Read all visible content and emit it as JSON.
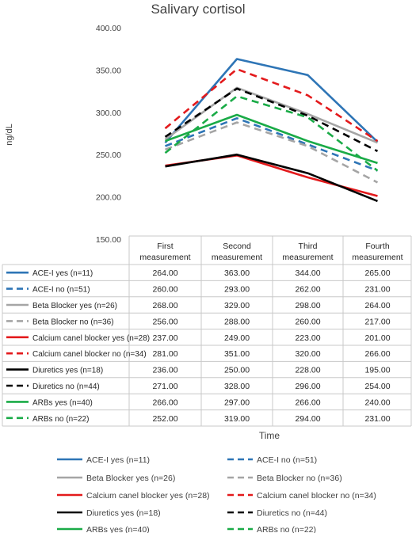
{
  "chart_data": {
    "type": "line",
    "title": "Salivary cortisol",
    "xlabel": "Time",
    "ylabel": "ng/dL",
    "ylim": [
      150,
      400
    ],
    "yticks": [
      "400.00",
      "350.00",
      "300.00",
      "250.00",
      "200.00",
      "150.00"
    ],
    "grid": false,
    "legend_position": "bottom",
    "categories": [
      [
        "First",
        "measurement"
      ],
      [
        "Second",
        "measurement"
      ],
      [
        "Third",
        "measurement"
      ],
      [
        "Fourth",
        "measurement"
      ]
    ],
    "series": [
      {
        "name": "ACE-I yes (n=11)",
        "color": "#2e75b6",
        "dashed": false,
        "values": [
          264.0,
          363.0,
          344.0,
          265.0
        ],
        "labels": [
          "264.00",
          "363.00",
          "344.00",
          "265.00"
        ]
      },
      {
        "name": "ACE-I no (n=51)",
        "color": "#2e75b6",
        "dashed": true,
        "values": [
          260.0,
          293.0,
          262.0,
          231.0
        ],
        "labels": [
          "260.00",
          "293.00",
          "262.00",
          "231.00"
        ]
      },
      {
        "name": "Beta Blocker yes (n=26)",
        "color": "#a5a5a5",
        "dashed": false,
        "values": [
          268.0,
          329.0,
          298.0,
          264.0
        ],
        "labels": [
          "268.00",
          "329.00",
          "298.00",
          "264.00"
        ]
      },
      {
        "name": "Beta Blocker no (n=36)",
        "color": "#a5a5a5",
        "dashed": true,
        "values": [
          256.0,
          288.0,
          260.0,
          217.0
        ],
        "labels": [
          "256.00",
          "288.00",
          "260.00",
          "217.00"
        ]
      },
      {
        "name": "Calcium canel blocker yes (n=28)",
        "color": "#e31a1c",
        "dashed": false,
        "values": [
          237.0,
          249.0,
          223.0,
          201.0
        ],
        "labels": [
          "237.00",
          "249.00",
          "223.00",
          "201.00"
        ]
      },
      {
        "name": "Calcium canel blocker no (n=34)",
        "color": "#e31a1c",
        "dashed": true,
        "values": [
          281.0,
          351.0,
          320.0,
          266.0
        ],
        "labels": [
          "281.00",
          "351.00",
          "320.00",
          "266.00"
        ]
      },
      {
        "name": "Diuretics yes (n=18)",
        "color": "#000000",
        "dashed": false,
        "values": [
          236.0,
          250.0,
          228.0,
          195.0
        ],
        "labels": [
          "236.00",
          "250.00",
          "228.00",
          "195.00"
        ]
      },
      {
        "name": "Diuretics no (n=44)",
        "color": "#000000",
        "dashed": true,
        "values": [
          271.0,
          328.0,
          296.0,
          254.0
        ],
        "labels": [
          "271.00",
          "328.00",
          "296.00",
          "254.00"
        ]
      },
      {
        "name": "ARBs yes (n=40)",
        "color": "#1aab47",
        "dashed": false,
        "values": [
          266.0,
          297.0,
          266.0,
          240.0
        ],
        "labels": [
          "266.00",
          "297.00",
          "266.00",
          "240.00"
        ]
      },
      {
        "name": "ARBs no (n=22)",
        "color": "#1aab47",
        "dashed": true,
        "values": [
          252.0,
          319.0,
          294.0,
          231.0
        ],
        "labels": [
          "252.00",
          "319.00",
          "294.00",
          "231.00"
        ]
      }
    ]
  }
}
